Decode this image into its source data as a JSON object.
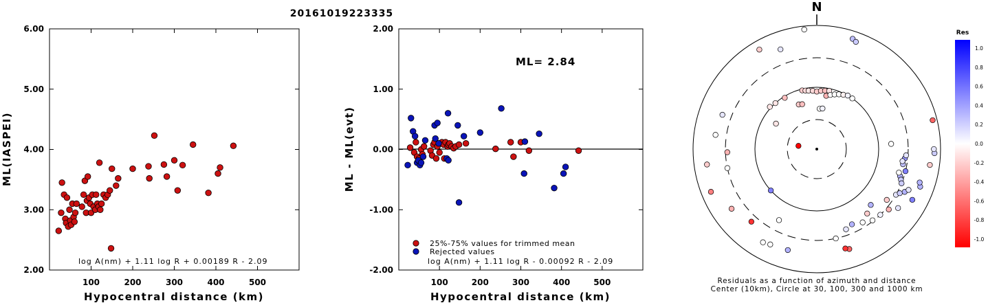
{
  "title": "20161019223335",
  "colors": {
    "retained": "#cc1111",
    "rejected": "#0a14b8"
  },
  "left_plot": {
    "ylabel": "ML(IASPEI)",
    "xlabel": "Hypocentral distance (km)",
    "equation": "log A(nm) + 1.11 log R + 0.00189 R - 2.09"
  },
  "mid_plot": {
    "ylabel": "ML - ML(evt)",
    "xlabel": "Hypocentral distance (km)",
    "ml_label": "ML= 2.84",
    "legend_retained": "25%-75% values for trimmed mean",
    "legend_rejected": "Rejected values",
    "equation": "log A(nm) + 1.11 log R - 0.00092 R - 2.09"
  },
  "polar_plot": {
    "north": "N",
    "caption1": "Residuals as a function of azimuth and distance",
    "caption2": "Center (10km), Circle at 30, 100, 300 and 1000 km",
    "colorbar_title": "Res",
    "colorbar_ticks": [
      "1.0",
      "0.8",
      "0.6",
      "0.4",
      "0.2",
      "0.0",
      "-0.2",
      "-0.4",
      "-0.6",
      "-0.8",
      "-1.0"
    ]
  },
  "chart_data": [
    {
      "type": "scatter",
      "ylabel": "ML(IASPEI)",
      "xlabel": "Hypocentral distance (km)",
      "xlim": [
        0,
        600
      ],
      "ylim": [
        2.0,
        6.0
      ],
      "xticks": [
        "100",
        "200",
        "300",
        "400",
        "500"
      ],
      "yticks": [
        "2.00",
        "3.00",
        "4.00",
        "5.00",
        "6.00"
      ],
      "series": [
        {
          "name": "",
          "points": [
            [
              22,
              2.65
            ],
            [
              28,
              2.95
            ],
            [
              30,
              3.45
            ],
            [
              35,
              3.25
            ],
            [
              38,
              2.85
            ],
            [
              40,
              2.78
            ],
            [
              42,
              3.2
            ],
            [
              45,
              2.72
            ],
            [
              48,
              3.0
            ],
            [
              50,
              2.82
            ],
            [
              52,
              2.75
            ],
            [
              55,
              3.1
            ],
            [
              58,
              2.88
            ],
            [
              60,
              2.8
            ],
            [
              62,
              2.95
            ],
            [
              65,
              3.1
            ],
            [
              78,
              3.05
            ],
            [
              82,
              3.25
            ],
            [
              85,
              3.48
            ],
            [
              88,
              2.95
            ],
            [
              90,
              3.15
            ],
            [
              92,
              3.55
            ],
            [
              95,
              3.2
            ],
            [
              98,
              3.1
            ],
            [
              100,
              2.95
            ],
            [
              103,
              3.25
            ],
            [
              106,
              3.05
            ],
            [
              110,
              3.0
            ],
            [
              112,
              3.25
            ],
            [
              115,
              3.1
            ],
            [
              118,
              3.05
            ],
            [
              120,
              3.78
            ],
            [
              122,
              3.0
            ],
            [
              125,
              3.1
            ],
            [
              130,
              3.25
            ],
            [
              135,
              3.2
            ],
            [
              140,
              3.25
            ],
            [
              145,
              3.32
            ],
            [
              148,
              2.36
            ],
            [
              150,
              3.68
            ],
            [
              160,
              3.4
            ],
            [
              165,
              3.52
            ],
            [
              200,
              3.68
            ],
            [
              238,
              3.72
            ],
            [
              240,
              3.52
            ],
            [
              252,
              4.23
            ],
            [
              275,
              3.75
            ],
            [
              282,
              3.55
            ],
            [
              300,
              3.82
            ],
            [
              308,
              3.32
            ],
            [
              320,
              3.74
            ],
            [
              345,
              4.08
            ],
            [
              382,
              3.28
            ],
            [
              405,
              3.6
            ],
            [
              410,
              3.7
            ],
            [
              442,
              4.06
            ]
          ]
        }
      ]
    },
    {
      "type": "scatter",
      "ylabel": "ML - ML(evt)",
      "xlabel": "Hypocentral distance (km)",
      "xlim": [
        0,
        600
      ],
      "ylim": [
        -2.0,
        2.0
      ],
      "xticks": [
        "100",
        "200",
        "300",
        "400",
        "500"
      ],
      "yticks": [
        "-2.00",
        "-1.00",
        "0.00",
        "1.00",
        "2.00"
      ],
      "series": [
        {
          "name": "25%-75% values for trimmed mean",
          "points": [
            [
              28,
              0.03
            ],
            [
              38,
              -0.05
            ],
            [
              42,
              0.12
            ],
            [
              45,
              -0.12
            ],
            [
              50,
              -0.15
            ],
            [
              55,
              0.0
            ],
            [
              58,
              -0.08
            ],
            [
              62,
              0.05
            ],
            [
              78,
              -0.02
            ],
            [
              82,
              -0.1
            ],
            [
              85,
              0.08
            ],
            [
              88,
              0.12
            ],
            [
              92,
              -0.15
            ],
            [
              95,
              0.05
            ],
            [
              100,
              -0.05
            ],
            [
              103,
              0.1
            ],
            [
              106,
              0.12
            ],
            [
              110,
              0.08
            ],
            [
              112,
              -0.15
            ],
            [
              115,
              0.12
            ],
            [
              120,
              0.05
            ],
            [
              122,
              0.08
            ],
            [
              125,
              0.1
            ],
            [
              130,
              0.05
            ],
            [
              135,
              0.02
            ],
            [
              140,
              0.05
            ],
            [
              148,
              0.08
            ],
            [
              165,
              0.1
            ],
            [
              238,
              0.01
            ],
            [
              275,
              0.12
            ],
            [
              282,
              -0.12
            ],
            [
              300,
              0.12
            ],
            [
              320,
              -0.02
            ],
            [
              442,
              -0.02
            ]
          ]
        },
        {
          "name": "Rejected values",
          "points": [
            [
              22,
              -0.26
            ],
            [
              30,
              0.52
            ],
            [
              35,
              0.3
            ],
            [
              40,
              0.22
            ],
            [
              45,
              -0.22
            ],
            [
              48,
              -0.18
            ],
            [
              52,
              -0.26
            ],
            [
              55,
              -0.22
            ],
            [
              60,
              -0.12
            ],
            [
              65,
              0.15
            ],
            [
              88,
              0.4
            ],
            [
              90,
              0.18
            ],
            [
              95,
              0.44
            ],
            [
              98,
              0.1
            ],
            [
              118,
              -0.15
            ],
            [
              121,
              0.6
            ],
            [
              122,
              -0.18
            ],
            [
              145,
              0.4
            ],
            [
              148,
              -0.88
            ],
            [
              160,
              0.22
            ],
            [
              200,
              0.28
            ],
            [
              252,
              0.68
            ],
            [
              308,
              -0.4
            ],
            [
              310,
              0.13
            ],
            [
              345,
              0.26
            ],
            [
              382,
              -0.64
            ],
            [
              405,
              -0.4
            ],
            [
              410,
              -0.29
            ]
          ]
        }
      ],
      "reference_line": 0.0,
      "annotation": "ML= 2.84"
    },
    {
      "type": "scatter",
      "subtype": "polar",
      "rings_km": [
        30,
        100,
        300,
        1000
      ],
      "center_km": 10,
      "colorbar": {
        "title": "Res",
        "range": [
          -1.0,
          1.0
        ]
      },
      "points": [
        {
          "az": 354,
          "dist": 880,
          "res": 0.0
        },
        {
          "az": 18,
          "dist": 750,
          "res": 0.25
        },
        {
          "az": 20,
          "dist": 700,
          "res": 0.2
        },
        {
          "az": 330,
          "dist": 720,
          "res": -0.2
        },
        {
          "az": 340,
          "dist": 520,
          "res": 0.1
        },
        {
          "az": 346,
          "dist": 95,
          "res": -0.2
        },
        {
          "az": 349,
          "dist": 92,
          "res": -0.15
        },
        {
          "az": 352,
          "dist": 90,
          "res": -0.1
        },
        {
          "az": 356,
          "dist": 88,
          "res": -0.15
        },
        {
          "az": 0,
          "dist": 85,
          "res": -0.2
        },
        {
          "az": 4,
          "dist": 88,
          "res": -0.2
        },
        {
          "az": 8,
          "dist": 90,
          "res": -0.25
        },
        {
          "az": 12,
          "dist": 92,
          "res": -0.1
        },
        {
          "az": 10,
          "dist": 75,
          "res": -0.3
        },
        {
          "az": 14,
          "dist": 80,
          "res": 0.0
        },
        {
          "az": 18,
          "dist": 85,
          "res": 0.0
        },
        {
          "az": 22,
          "dist": 90,
          "res": 0.0
        },
        {
          "az": 26,
          "dist": 95,
          "res": -0.05
        },
        {
          "az": 30,
          "dist": 100,
          "res": 0.05
        },
        {
          "az": 35,
          "dist": 100,
          "res": 0.0
        },
        {
          "az": 338,
          "dist": 60,
          "res": -0.2
        },
        {
          "az": 342,
          "dist": 58,
          "res": -0.25
        },
        {
          "az": 4,
          "dist": 45,
          "res": 0.0
        },
        {
          "az": 8,
          "dist": 46,
          "res": 0.05
        },
        {
          "az": 328,
          "dist": 95,
          "res": -0.25
        },
        {
          "az": 318,
          "dist": 100,
          "res": -0.1
        },
        {
          "az": 312,
          "dist": 105,
          "res": -0.1
        },
        {
          "az": 302,
          "dist": 60,
          "res": -0.1
        },
        {
          "az": 280,
          "dist": 20,
          "res": -1.0
        },
        {
          "az": 290,
          "dist": 420,
          "res": 0.1
        },
        {
          "az": 278,
          "dist": 450,
          "res": 0.0
        },
        {
          "az": 268,
          "dist": 280,
          "res": -0.3
        },
        {
          "az": 258,
          "dist": 300,
          "res": 0.0
        },
        {
          "az": 262,
          "dist": 620,
          "res": -0.2
        },
        {
          "az": 248,
          "dist": 700,
          "res": -0.5
        },
        {
          "az": 235,
          "dist": 480,
          "res": -0.3
        },
        {
          "az": 222,
          "dist": 380,
          "res": -0.8
        },
        {
          "az": 210,
          "dist": 550,
          "res": 0.0
        },
        {
          "az": 206,
          "dist": 520,
          "res": 0.0
        },
        {
          "az": 196,
          "dist": 500,
          "res": 0.3
        },
        {
          "az": 228,
          "dist": 100,
          "res": 0.5
        },
        {
          "az": 208,
          "dist": 200,
          "res": 0.0
        },
        {
          "az": 162,
          "dist": 500,
          "res": -0.6
        },
        {
          "az": 164,
          "dist": 470,
          "res": -0.8
        },
        {
          "az": 168,
          "dist": 300,
          "res": 0.0
        },
        {
          "az": 160,
          "dist": 240,
          "res": 0.1
        },
        {
          "az": 155,
          "dist": 220,
          "res": 0.3
        },
        {
          "az": 148,
          "dist": 250,
          "res": 0.0
        },
        {
          "az": 142,
          "dist": 290,
          "res": 0.0
        },
        {
          "az": 136,
          "dist": 300,
          "res": 0.05
        },
        {
          "az": 130,
          "dist": 330,
          "res": -0.3
        },
        {
          "az": 126,
          "dist": 420,
          "res": 0.1
        },
        {
          "az": 120,
          "dist": 300,
          "res": 0.1
        },
        {
          "az": 118,
          "dist": 330,
          "res": 0.2
        },
        {
          "az": 116,
          "dist": 380,
          "res": 0.3
        },
        {
          "az": 114,
          "dist": 420,
          "res": 0.1
        },
        {
          "az": 108,
          "dist": 260,
          "res": 0.3
        },
        {
          "az": 110,
          "dist": 280,
          "res": 0.2
        },
        {
          "az": 112,
          "dist": 300,
          "res": 0.2
        },
        {
          "az": 126,
          "dist": 250,
          "res": -0.2
        },
        {
          "az": 110,
          "dist": 600,
          "res": 0.3
        },
        {
          "az": 108,
          "dist": 560,
          "res": 0.3
        },
        {
          "az": 104,
          "dist": 300,
          "res": 0.5
        },
        {
          "az": 100,
          "dist": 260,
          "res": 0.25
        },
        {
          "az": 96,
          "dist": 270,
          "res": 0.4
        },
        {
          "az": 94,
          "dist": 280,
          "res": 0.1
        },
        {
          "az": 98,
          "dist": 250,
          "res": 0.1
        },
        {
          "az": 106,
          "dist": 240,
          "res": 0.0
        },
        {
          "az": 118,
          "dist": 560,
          "res": 0.5
        },
        {
          "az": 98,
          "dist": 700,
          "res": -0.2
        },
        {
          "az": 92,
          "dist": 800,
          "res": 0.2
        },
        {
          "az": 90,
          "dist": 780,
          "res": 0.1
        },
        {
          "az": 76,
          "dist": 850,
          "res": -0.6
        },
        {
          "az": 86,
          "dist": 160,
          "res": 0.0
        },
        {
          "az": 142,
          "dist": 210,
          "res": -0.2
        },
        {
          "az": 136,
          "dist": 180,
          "res": 0.3
        }
      ]
    }
  ]
}
